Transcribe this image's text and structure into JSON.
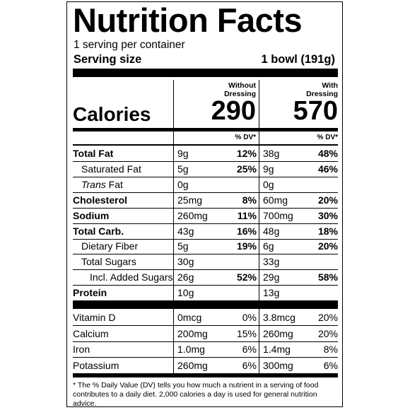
{
  "title": "Nutrition Facts",
  "servings": "1 serving per container",
  "serving_size_label": "Serving size",
  "serving_size_value": "1 bowl (191g)",
  "col1_header": [
    "Without",
    "Dressing"
  ],
  "col2_header": [
    "With",
    "Dressing"
  ],
  "calories_label": "Calories",
  "calories_col1": "290",
  "calories_col2": "570",
  "dv_header": "% DV*",
  "nutrients": [
    {
      "name": "Total Fat",
      "bold": true,
      "c1": "9g",
      "c1dv": "12%",
      "c2": "38g",
      "c2dv": "48%"
    },
    {
      "name": "Saturated Fat",
      "indent": 1,
      "c1": "5g",
      "c1dv": "25%",
      "c2": "9g",
      "c2dv": "46%"
    },
    {
      "name_italic": "Trans",
      "name_rest": " Fat",
      "indent": 1,
      "c1": "0g",
      "c1dv": "",
      "c2": "0g",
      "c2dv": ""
    },
    {
      "name": "Cholesterol",
      "bold": true,
      "c1": "25mg",
      "c1dv": "8%",
      "c2": "60mg",
      "c2dv": "20%"
    },
    {
      "name": "Sodium",
      "bold": true,
      "c1": "260mg",
      "c1dv": "11%",
      "c2": "700mg",
      "c2dv": "30%"
    },
    {
      "name": "Total Carb.",
      "bold": true,
      "c1": "43g",
      "c1dv": "16%",
      "c2": "48g",
      "c2dv": "18%"
    },
    {
      "name": "Dietary Fiber",
      "indent": 1,
      "c1": "5g",
      "c1dv": "19%",
      "c2": "6g",
      "c2dv": "20%"
    },
    {
      "name": "Total Sugars",
      "indent": 1,
      "c1": "30g",
      "c1dv": "",
      "c2": "33g",
      "c2dv": ""
    },
    {
      "name": "Incl. Added Sugars",
      "indent": 2,
      "c1": "26g",
      "c1dv": "52%",
      "c2": "29g",
      "c2dv": "58%"
    },
    {
      "name": "Protein",
      "bold": true,
      "c1": "10g",
      "c1dv": "",
      "c2": "13g",
      "c2dv": ""
    }
  ],
  "vitamins": [
    {
      "name": "Vitamin D",
      "c1": "0mcg",
      "c1dv": "0%",
      "c2": "3.8mcg",
      "c2dv": "20%"
    },
    {
      "name": "Calcium",
      "c1": "200mg",
      "c1dv": "15%",
      "c2": "260mg",
      "c2dv": "20%"
    },
    {
      "name": "Iron",
      "c1": "1.0mg",
      "c1dv": "6%",
      "c2": "1.4mg",
      "c2dv": "8%"
    },
    {
      "name": "Potassium",
      "c1": "260mg",
      "c1dv": "6%",
      "c2": "300mg",
      "c2dv": "6%"
    }
  ],
  "footnote": "* The % Daily Value (DV) tells you how much a nutrient in a serving of food contributes to a daily diet. 2,000 calories a day is used for general nutrition advice."
}
